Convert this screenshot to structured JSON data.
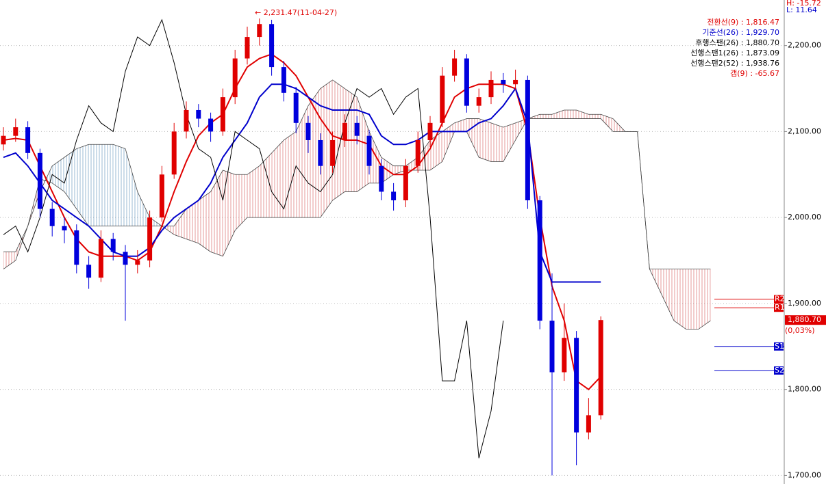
{
  "chart_data": {
    "type": "candlestick",
    "ylim": [
      1690,
      2253
    ],
    "yticks": [
      {
        "value": 1700,
        "label": "1,700.00"
      },
      {
        "value": 1800,
        "label": "1,800.00"
      },
      {
        "value": 1900,
        "label": "1,900.00"
      },
      {
        "value": 2000,
        "label": "2,000.00"
      },
      {
        "value": 2100,
        "label": "2,100.00"
      },
      {
        "value": 2200,
        "label": "2,200.00"
      }
    ],
    "grid": true,
    "up_color": "#e00000",
    "down_color": "#0000dd",
    "open": [
      2085,
      2095,
      2105,
      2075,
      2010,
      1990,
      1985,
      1945,
      1930,
      1975,
      1960,
      1945,
      1950,
      2000,
      2050,
      2100,
      2125,
      2115,
      2100,
      2140,
      2185,
      2210,
      2225,
      2175,
      2145,
      2110,
      2090,
      2060,
      2090,
      2110,
      2095,
      2060,
      2030,
      2020,
      2060,
      2090,
      2110,
      2165,
      2185,
      2130,
      2140,
      2160,
      2155,
      2160,
      2020,
      1880,
      1820,
      1860,
      1750,
      1770
    ],
    "high": [
      2105,
      2115,
      2112,
      2080,
      2018,
      2000,
      1992,
      1955,
      1985,
      1982,
      1968,
      1962,
      2008,
      2060,
      2110,
      2135,
      2132,
      2122,
      2150,
      2195,
      2222,
      2231.47,
      2230,
      2182,
      2152,
      2118,
      2098,
      2100,
      2120,
      2118,
      2102,
      2068,
      2040,
      2068,
      2100,
      2118,
      2175,
      2195,
      2190,
      2150,
      2170,
      2168,
      2172,
      2165,
      2025,
      1935,
      1900,
      1868,
      1790,
      1885
    ],
    "low": [
      2078,
      2088,
      2068,
      2000,
      1978,
      1970,
      1935,
      1917,
      1925,
      1950,
      1880,
      1935,
      1942,
      1995,
      2045,
      2092,
      2105,
      2088,
      2095,
      2132,
      2178,
      2200,
      2165,
      2135,
      2098,
      2075,
      2050,
      2052,
      2082,
      2085,
      2050,
      2020,
      2008,
      2012,
      2052,
      2082,
      2105,
      2158,
      2122,
      2122,
      2132,
      2145,
      2148,
      2010,
      1870,
      1700,
      1810,
      1712,
      1742,
      1765
    ],
    "close": [
      2095,
      2105,
      2075,
      2010,
      1990,
      1985,
      1945,
      1930,
      1975,
      1960,
      1945,
      1950,
      2000,
      2050,
      2100,
      2125,
      2115,
      2100,
      2140,
      2185,
      2210,
      2225,
      2175,
      2145,
      2110,
      2090,
      2060,
      2090,
      2110,
      2095,
      2060,
      2030,
      2020,
      2060,
      2090,
      2110,
      2165,
      2185,
      2130,
      2140,
      2160,
      2155,
      2160,
      2020,
      1880,
      1820,
      1860,
      1750,
      1770,
      1880.7
    ],
    "overlays": [
      {
        "color": "#e00000",
        "width": 2,
        "values": [
          2090,
          2092,
          2090,
          2060,
          2030,
          2000,
          1975,
          1960,
          1955,
          1955,
          1955,
          1950,
          1960,
          1990,
          2030,
          2065,
          2095,
          2110,
          2120,
          2150,
          2175,
          2185,
          2190,
          2180,
          2165,
          2140,
          2115,
          2095,
          2090,
          2090,
          2085,
          2060,
          2050,
          2050,
          2060,
          2080,
          2110,
          2140,
          2150,
          2155,
          2155,
          2155,
          2150,
          2100,
          2000,
          1920,
          1880,
          1810,
          1800,
          1815,
          null,
          null,
          null,
          null,
          null,
          null,
          null,
          null,
          null
        ]
      },
      {
        "color": "#0000cc",
        "width": 2,
        "values": [
          2070,
          2075,
          2060,
          2040,
          2020,
          2010,
          2000,
          1990,
          1975,
          1960,
          1955,
          1955,
          1965,
          1985,
          2000,
          2010,
          2020,
          2040,
          2070,
          2090,
          2110,
          2140,
          2155,
          2155,
          2150,
          2140,
          2130,
          2125,
          2125,
          2125,
          2120,
          2095,
          2085,
          2085,
          2090,
          2100,
          2100,
          2100,
          2100,
          2110,
          2115,
          2130,
          2150,
          2110,
          1960,
          1925,
          1925,
          1925,
          1925,
          1925,
          null,
          null,
          null,
          null,
          null,
          null,
          null,
          null,
          null
        ]
      },
      {
        "color": "#000000",
        "width": 1,
        "values": [
          1980,
          1990,
          1960,
          2000,
          2050,
          2040,
          2090,
          2130,
          2110,
          2100,
          2170,
          2210,
          2200,
          2230,
          2180,
          2120,
          2080,
          2070,
          2020,
          2100,
          2090,
          2080,
          2030,
          2010,
          2060,
          2040,
          2030,
          2050,
          2110,
          2150,
          2140,
          2150,
          2120,
          2140,
          2150,
          2000,
          1810,
          1810,
          1880,
          1720,
          1775,
          1880,
          null,
          null,
          null,
          null,
          null,
          null,
          null,
          null,
          null,
          null,
          null,
          null,
          null,
          null,
          null,
          null,
          null
        ]
      }
    ],
    "cloud": {
      "line_color": "#444444",
      "up_color": "#e08080",
      "down_color": "#80a8c8",
      "span_a": [
        1960,
        1960,
        1990,
        2045,
        2040,
        2030,
        2010,
        1990,
        1990,
        1990,
        1990,
        1990,
        1990,
        1990,
        1990,
        2010,
        2020,
        2030,
        2055,
        2050,
        2050,
        2060,
        2075,
        2090,
        2100,
        2130,
        2150,
        2160,
        2150,
        2140,
        2100,
        2070,
        2060,
        2060,
        2070,
        2090,
        2100,
        2110,
        2115,
        2115,
        2110,
        2105,
        2110,
        2115,
        2120,
        2120,
        2125,
        2125,
        2120,
        2120,
        2115,
        2100,
        2100,
        1940,
        1940,
        1940,
        1940,
        1940,
        1940
      ],
      "span_b": [
        1940,
        1950,
        1990,
        2030,
        2060,
        2070,
        2080,
        2085,
        2085,
        2085,
        2080,
        2030,
        2000,
        1990,
        1980,
        1975,
        1970,
        1960,
        1955,
        1985,
        2000,
        2000,
        2000,
        2000,
        2000,
        2000,
        2000,
        2020,
        2030,
        2030,
        2040,
        2040,
        2050,
        2055,
        2055,
        2055,
        2065,
        2100,
        2100,
        2070,
        2065,
        2065,
        2090,
        2115,
        2115,
        2115,
        2115,
        2115,
        2115,
        2115,
        2100,
        2100,
        2100,
        1940,
        1910,
        1880,
        1870,
        1870,
        1880
      ]
    },
    "annotation": "← 2,231.47(11-04-27)",
    "legend": [
      {
        "text": "전환선(9) : 1,816.47",
        "color": "#e00000"
      },
      {
        "text": "기준선(26) : 1,929.70",
        "color": "#0000cc"
      },
      {
        "text": "후행스팬(26) : 1,880.70",
        "color": "#000000"
      },
      {
        "text": "선행스팬1(26) : 1,873.09",
        "color": "#000000"
      },
      {
        "text": "선행스팬2(52) : 1,938.76",
        "color": "#000000"
      },
      {
        "text": "갭(9) : -65.67",
        "color": "#e00000"
      }
    ],
    "hl": [
      {
        "text": "H: -15.72",
        "color": "#e00000"
      },
      {
        "text": "L: 11.64",
        "color": "#0000cc"
      }
    ],
    "levels": [
      {
        "name": "R2",
        "value": 1905,
        "color": "#e00000"
      },
      {
        "name": "R1",
        "value": 1895,
        "color": "#e00000"
      },
      {
        "name": "S1",
        "value": 1850,
        "color": "#0000cc"
      },
      {
        "name": "S2",
        "value": 1822,
        "color": "#0000cc"
      }
    ],
    "price_tag": {
      "value": 1880.7,
      "label": "1,880.70",
      "change": "(0,03%)"
    }
  }
}
